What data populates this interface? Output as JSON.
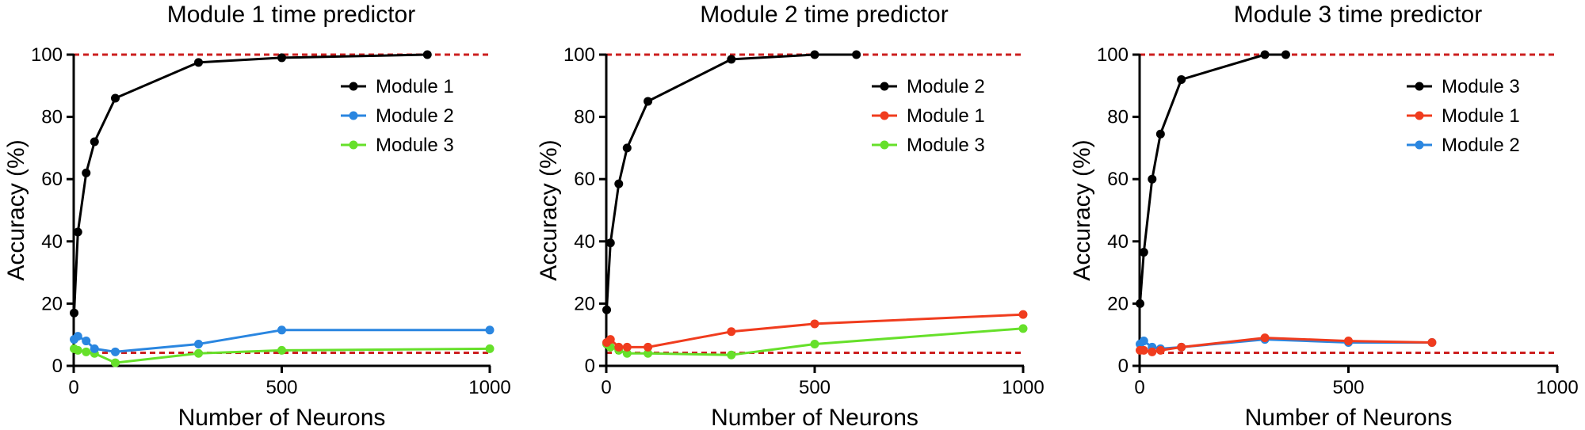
{
  "chart_data": [
    {
      "type": "line",
      "title": "Module 1 time predictor",
      "xlabel": "Number of Neurons",
      "ylabel": "Accuracy (%)",
      "xlim": [
        0,
        1000
      ],
      "ylim": [
        0,
        100
      ],
      "xticks": [
        0,
        500,
        1000
      ],
      "yticks": [
        0,
        20,
        40,
        60,
        80,
        100
      ],
      "grid": false,
      "legend": "top-right",
      "reference_lines": [
        {
          "y": 100,
          "color": "#cc1f1f",
          "style": "dashed"
        },
        {
          "y": 4.2,
          "color": "#cc1f1f",
          "style": "dashed"
        }
      ],
      "series": [
        {
          "name": "Module 1",
          "color": "#000000",
          "x": [
            1,
            10,
            30,
            50,
            100,
            300,
            500,
            850
          ],
          "y": [
            17,
            43,
            62,
            72,
            86,
            97.5,
            99,
            100
          ]
        },
        {
          "name": "Module 2",
          "color": "#2a86e0",
          "x": [
            1,
            10,
            30,
            50,
            100,
            300,
            500,
            1000
          ],
          "y": [
            8.5,
            9.5,
            8,
            5.5,
            4.5,
            7,
            11.5,
            11.5
          ]
        },
        {
          "name": "Module 3",
          "color": "#66e02a",
          "x": [
            1,
            10,
            30,
            50,
            100,
            300,
            500,
            1000
          ],
          "y": [
            5.5,
            5,
            4.5,
            4,
            1,
            4,
            5,
            5.5
          ]
        }
      ]
    },
    {
      "type": "line",
      "title": "Module 2 time predictor",
      "xlabel": "Number of Neurons",
      "ylabel": "Accuracy (%)",
      "xlim": [
        0,
        1000
      ],
      "ylim": [
        0,
        100
      ],
      "xticks": [
        0,
        500,
        1000
      ],
      "yticks": [
        0,
        20,
        40,
        60,
        80,
        100
      ],
      "grid": false,
      "legend": "top-right",
      "reference_lines": [
        {
          "y": 100,
          "color": "#cc1f1f",
          "style": "dashed"
        },
        {
          "y": 4.2,
          "color": "#cc1f1f",
          "style": "dashed"
        }
      ],
      "series": [
        {
          "name": "Module 2",
          "color": "#000000",
          "x": [
            1,
            10,
            30,
            50,
            100,
            300,
            500,
            600
          ],
          "y": [
            18,
            39.5,
            58.5,
            70,
            85,
            98.5,
            100,
            100
          ]
        },
        {
          "name": "Module 1",
          "color": "#f03c1e",
          "x": [
            1,
            10,
            30,
            50,
            100,
            300,
            500,
            1000
          ],
          "y": [
            7.5,
            8.5,
            6,
            6,
            6,
            11,
            13.5,
            16.5
          ]
        },
        {
          "name": "Module 3",
          "color": "#66e02a",
          "x": [
            1,
            10,
            30,
            50,
            100,
            300,
            500,
            1000
          ],
          "y": [
            7,
            6,
            5,
            4,
            4,
            3.5,
            7,
            12
          ]
        }
      ]
    },
    {
      "type": "line",
      "title": "Module 3 time predictor",
      "xlabel": "Number of Neurons",
      "ylabel": "Accuracy (%)",
      "xlim": [
        0,
        1000
      ],
      "ylim": [
        0,
        100
      ],
      "xticks": [
        0,
        500,
        1000
      ],
      "yticks": [
        0,
        20,
        40,
        60,
        80,
        100
      ],
      "grid": false,
      "legend": "top-right",
      "reference_lines": [
        {
          "y": 100,
          "color": "#cc1f1f",
          "style": "dashed"
        },
        {
          "y": 4.2,
          "color": "#cc1f1f",
          "style": "dashed"
        }
      ],
      "series": [
        {
          "name": "Module 3",
          "color": "#000000",
          "x": [
            1,
            10,
            30,
            50,
            100,
            300,
            350
          ],
          "y": [
            20,
            36.5,
            60,
            74.5,
            92,
            100,
            100
          ]
        },
        {
          "name": "Module 1",
          "color": "#f03c1e",
          "x": [
            1,
            10,
            30,
            50,
            100,
            300,
            500,
            700
          ],
          "y": [
            5,
            5,
            4.5,
            5,
            6,
            9,
            8,
            7.5
          ]
        },
        {
          "name": "Module 2",
          "color": "#2a86e0",
          "x": [
            1,
            10,
            30,
            50,
            100,
            300,
            500,
            700
          ],
          "y": [
            7,
            8,
            6,
            5.5,
            6,
            8.5,
            7.5,
            7.5
          ]
        }
      ]
    }
  ]
}
